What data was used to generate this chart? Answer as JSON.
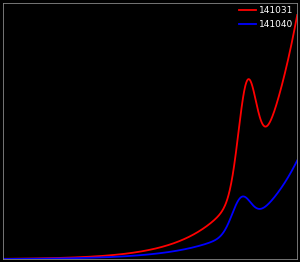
{
  "background_color": "#000000",
  "axes_facecolor": "#000000",
  "line1_color": "#ff0000",
  "line2_color": "#0000ff",
  "line1_label": "141031",
  "line2_label": "141040",
  "spine_color": "#888888",
  "legend_text_color": "white",
  "figsize": [
    3.0,
    2.62
  ],
  "dpi": 100,
  "legend_fontsize": 6.5,
  "linewidth": 1.3
}
